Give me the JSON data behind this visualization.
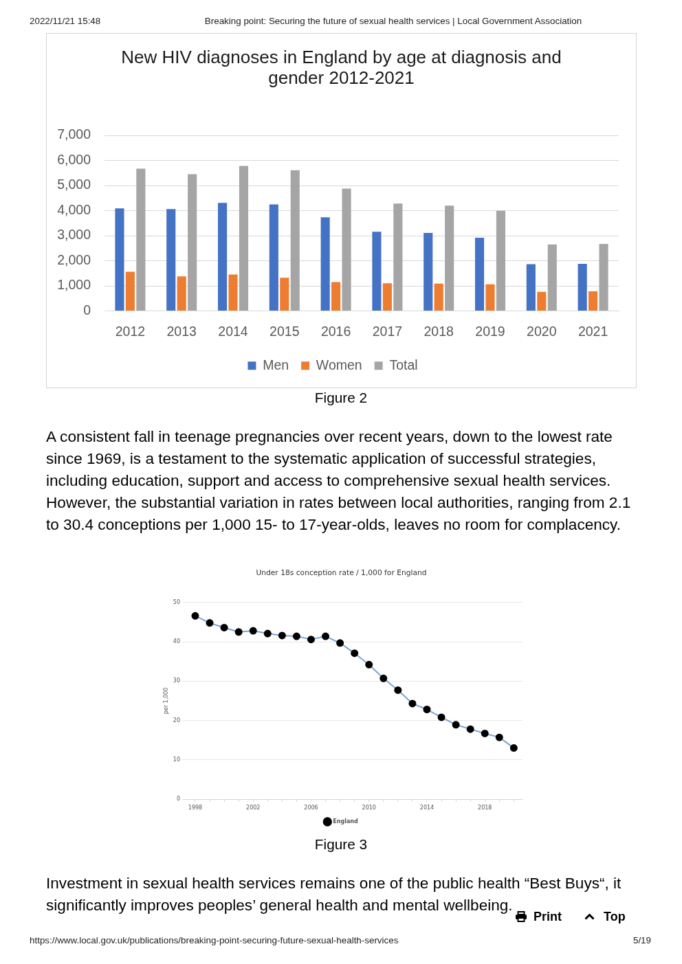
{
  "chart_data": [
    {
      "type": "bar",
      "title": "New HIV diagnoses in England by age at diagnosis and gender 2012-2021",
      "categories": [
        "2012",
        "2013",
        "2014",
        "2015",
        "2016",
        "2017",
        "2018",
        "2019",
        "2020",
        "2021"
      ],
      "series": [
        {
          "name": "Men",
          "color": "#4472c4",
          "values": [
            4090,
            4060,
            4310,
            4250,
            3730,
            3160,
            3110,
            2920,
            1860,
            1880
          ]
        },
        {
          "name": "Women",
          "color": "#ed7d31",
          "values": [
            1560,
            1380,
            1450,
            1320,
            1150,
            1100,
            1090,
            1060,
            760,
            780
          ]
        },
        {
          "name": "Total",
          "color": "#a5a5a5",
          "values": [
            5670,
            5450,
            5780,
            5610,
            4880,
            4280,
            4200,
            3990,
            2650,
            2670
          ]
        }
      ],
      "ylim": [
        0,
        7000
      ],
      "yticks": [
        0,
        {
          "value": 1000,
          "label": "1,000"
        },
        {
          "value": 2000,
          "label": "2,000"
        },
        {
          "value": 3000,
          "label": "3,000"
        },
        {
          "value": 4000,
          "label": "4,000"
        },
        {
          "value": 5000,
          "label": "5,000"
        },
        {
          "value": 6000,
          "label": "6,000"
        },
        {
          "value": 7000,
          "label": "7,000"
        }
      ],
      "grid": "y",
      "legend": "bottom",
      "annotations": [
        "2022/11/21 15:48",
        "Breaking point: Securing the future of sexual health services | Local Government Association",
        "Figure 2",
        "A consistent fall in teenage pregnancies over recent years, down to the lowest rate since 1969, is a testament to the systematic application of successful strategies, including education, support and access to comprehensive sexual health services. However, the substantial variation in rates between local authorities, ranging from 2.1 to 30.4 conceptions per 1,000 15- to 17-year-olds, leaves no room for complacency."
      ]
    },
    {
      "type": "line",
      "title": "Under 18s conception rate / 1,000 for England",
      "ylabel": "per 1,000",
      "x": [
        1998,
        1999,
        2000,
        2001,
        2002,
        2003,
        2004,
        2005,
        2006,
        2007,
        2008,
        2009,
        2010,
        2011,
        2012,
        2013,
        2014,
        2015,
        2016,
        2017,
        2018,
        2019,
        2020
      ],
      "series": [
        {
          "name": "England",
          "color": "#7aa3d6",
          "values": [
            46.6,
            44.8,
            43.6,
            42.5,
            42.8,
            42.1,
            41.6,
            41.4,
            40.6,
            41.4,
            39.7,
            37.1,
            34.2,
            30.7,
            27.7,
            24.3,
            22.8,
            20.8,
            18.9,
            17.8,
            16.7,
            15.7,
            13.0
          ]
        }
      ],
      "xlim": [
        1997.1,
        2020.6
      ],
      "xticks": [
        1998,
        {
          "value": 1999,
          "label": null
        },
        {
          "value": 2000,
          "label": null
        },
        {
          "value": 2001,
          "label": null
        },
        2002,
        {
          "value": 2003,
          "label": null
        },
        {
          "value": 2004,
          "label": null
        },
        {
          "value": 2005,
          "label": null
        },
        2006,
        {
          "value": 2007,
          "label": null
        },
        {
          "value": 2008,
          "label": null
        },
        {
          "value": 2009,
          "label": null
        },
        2010,
        {
          "value": 2011,
          "label": null
        },
        {
          "value": 2012,
          "label": null
        },
        {
          "value": 2013,
          "label": null
        },
        2014,
        {
          "value": 2015,
          "label": null
        },
        {
          "value": 2016,
          "label": null
        },
        {
          "value": 2017,
          "label": null
        },
        2018,
        {
          "value": 2019,
          "label": null
        },
        {
          "value": 2020,
          "label": null
        }
      ],
      "ylim": [
        0,
        50
      ],
      "yticks": [
        0,
        10,
        20,
        30,
        40,
        50
      ],
      "grid": "y",
      "legend": "bottom",
      "marker": "circle",
      "annotations": [
        "Figure 3",
        "Investment in sexual health services remains one of the public health “Best Buys“, it significantly improves peoples’ general health and mental wellbeing.",
        "Print",
        "Top",
        "https://www.local.gov.uk/publications/breaking-point-securing-future-sexual-health-services",
        "5/19"
      ]
    }
  ]
}
